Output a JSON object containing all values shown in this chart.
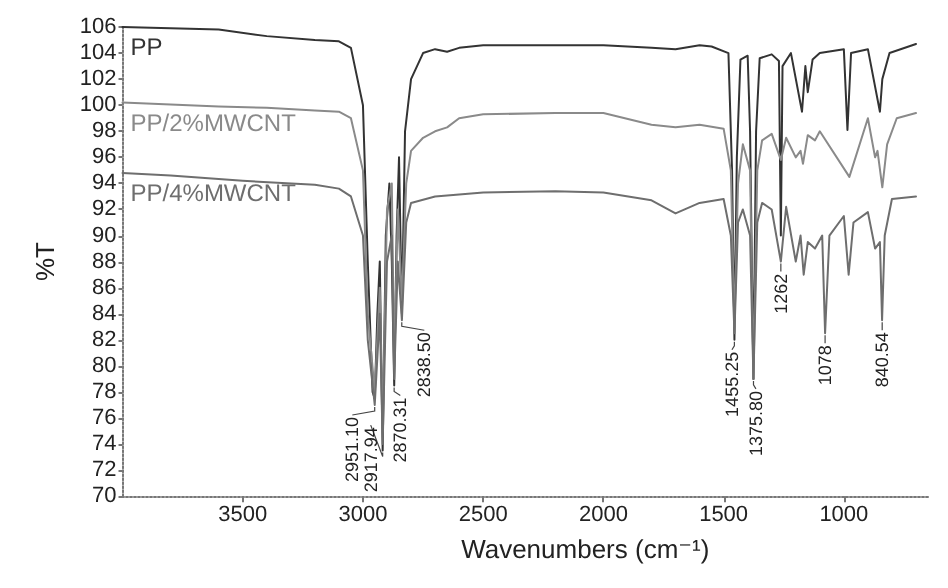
{
  "chart_data": {
    "type": "line",
    "xlabel": "Wavenumbers (cm⁻¹)",
    "ylabel": "%T",
    "xlim": [
      4000,
      650
    ],
    "ylim": [
      70,
      106
    ],
    "xticks": [
      3500,
      3000,
      2500,
      2000,
      1500,
      1000
    ],
    "yticks": [
      70,
      72,
      74,
      76,
      78,
      80,
      82,
      84,
      86,
      88,
      90,
      92,
      94,
      96,
      98,
      100,
      102,
      104,
      106
    ],
    "grid": false,
    "legend": false,
    "marker": "none",
    "line_style": "solid",
    "series": [
      {
        "name": "PP",
        "color": "#333333",
        "x": [
          4000,
          3800,
          3600,
          3400,
          3200,
          3100,
          3050,
          3000,
          2980,
          2960,
          2951,
          2940,
          2930,
          2918,
          2905,
          2890,
          2880,
          2870,
          2860,
          2850,
          2838,
          2825,
          2800,
          2750,
          2700,
          2650,
          2600,
          2500,
          2300,
          2000,
          1800,
          1700,
          1600,
          1550,
          1480,
          1465,
          1455,
          1445,
          1430,
          1400,
          1390,
          1376,
          1365,
          1350,
          1300,
          1270,
          1262,
          1255,
          1220,
          1174,
          1160,
          1150,
          1130,
          1100,
          1000,
          985,
          970,
          900,
          850,
          840,
          810,
          700
        ],
        "values": [
          106,
          105.9,
          105.8,
          105.3,
          105,
          104.9,
          104.4,
          100,
          88,
          78,
          77.5,
          84,
          88,
          73.5,
          90,
          94,
          88,
          78.5,
          90,
          96,
          84,
          98,
          102,
          104,
          104.3,
          104.1,
          104.4,
          104.6,
          104.6,
          104.6,
          104.4,
          104.3,
          104.6,
          104.5,
          104,
          95,
          82,
          96,
          103.5,
          103.8,
          98,
          79,
          98,
          103.6,
          103.9,
          103.4,
          90,
          103,
          104,
          99.5,
          103,
          101,
          103.5,
          104,
          104.3,
          98.1,
          104,
          104.3,
          99.5,
          102,
          104,
          104.7
        ]
      },
      {
        "name": "PP/2%MWCNT",
        "color": "#8a8a8a",
        "x": [
          4000,
          3600,
          3400,
          3200,
          3100,
          3050,
          3000,
          2980,
          2951,
          2930,
          2918,
          2900,
          2880,
          2870,
          2855,
          2838,
          2820,
          2800,
          2750,
          2700,
          2650,
          2600,
          2500,
          2200,
          2000,
          1800,
          1700,
          1600,
          1500,
          1470,
          1455,
          1440,
          1420,
          1390,
          1376,
          1360,
          1340,
          1300,
          1262,
          1240,
          1200,
          1180,
          1170,
          1150,
          1120,
          1100,
          977,
          900,
          870,
          860,
          840,
          820,
          780,
          700
        ],
        "values": [
          100.2,
          99.9,
          99.8,
          99.6,
          99.5,
          99,
          95,
          84,
          78,
          86,
          75,
          92,
          94,
          80,
          92,
          85,
          94,
          96.5,
          97.5,
          98,
          98.3,
          99,
          99.3,
          99.4,
          99.4,
          98.5,
          98.3,
          98.5,
          98.2,
          95,
          83,
          94,
          97,
          95,
          79,
          95,
          97.3,
          97.8,
          95.8,
          97.5,
          96,
          96.5,
          95.5,
          97.7,
          97.3,
          98,
          94.5,
          99,
          96,
          96.5,
          93.7,
          97,
          99,
          99.4
        ]
      },
      {
        "name": "PP/4%MWCNT",
        "color": "#6e6e6e",
        "x": [
          4000,
          3800,
          3500,
          3200,
          3100,
          3050,
          3000,
          2980,
          2951,
          2930,
          2918,
          2900,
          2880,
          2870,
          2855,
          2838,
          2820,
          2800,
          2700,
          2500,
          2200,
          2000,
          1800,
          1700,
          1600,
          1500,
          1470,
          1455,
          1440,
          1420,
          1390,
          1376,
          1360,
          1340,
          1300,
          1262,
          1240,
          1200,
          1180,
          1167,
          1150,
          1120,
          1090,
          1078,
          1060,
          1000,
          980,
          960,
          900,
          870,
          850,
          841,
          830,
          800,
          700
        ],
        "values": [
          94.8,
          94.6,
          94.2,
          93.9,
          93.6,
          93,
          90,
          82,
          77,
          84,
          74,
          88,
          90,
          79,
          88,
          83.5,
          91,
          92.5,
          93,
          93.3,
          93.4,
          93.3,
          92.7,
          91.7,
          92.5,
          92.8,
          90,
          82.5,
          91,
          92,
          90,
          79,
          91,
          92.5,
          92,
          88,
          92.2,
          88,
          90,
          87,
          89.5,
          89,
          90,
          82.5,
          90,
          91.5,
          87,
          91,
          91.8,
          89,
          89.5,
          83.5,
          90,
          92.8,
          93
        ]
      }
    ],
    "annotations": [
      {
        "text": "2951.10",
        "x": 2951.1,
        "y": 77
      },
      {
        "text": "2917.94",
        "x": 2917.94,
        "y": 73.5
      },
      {
        "text": "2870.31",
        "x": 2870.31,
        "y": 78.5
      },
      {
        "text": "2838.50",
        "x": 2838.5,
        "y": 83.5
      },
      {
        "text": "1455.25",
        "x": 1455.25,
        "y": 82
      },
      {
        "text": "1375.80",
        "x": 1375.8,
        "y": 79
      },
      {
        "text": "1262",
        "x": 1262,
        "y": 88
      },
      {
        "text": "1078",
        "x": 1078,
        "y": 82.5
      },
      {
        "text": "840.54",
        "x": 840.54,
        "y": 83.5
      }
    ]
  }
}
